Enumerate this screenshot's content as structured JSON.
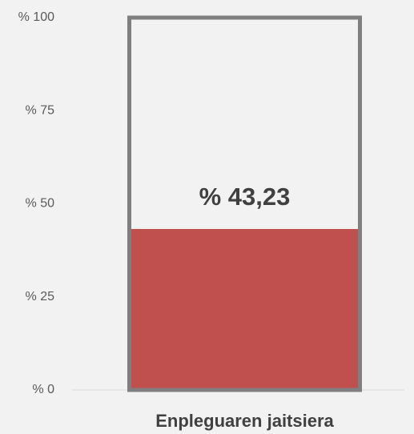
{
  "chart_data": {
    "type": "bar",
    "categories": [
      "Enpleguaren jaitsiera"
    ],
    "values": [
      43.23
    ],
    "value_labels": [
      "% 43,23"
    ],
    "color": "#c0504d",
    "ylim": [
      0,
      100
    ],
    "yticks": [
      {
        "value": 0,
        "label": "% 0"
      },
      {
        "value": 25,
        "label": "% 25"
      },
      {
        "value": 50,
        "label": "% 50"
      },
      {
        "value": 75,
        "label": "% 75"
      },
      {
        "value": 100,
        "label": "% 100"
      }
    ]
  }
}
